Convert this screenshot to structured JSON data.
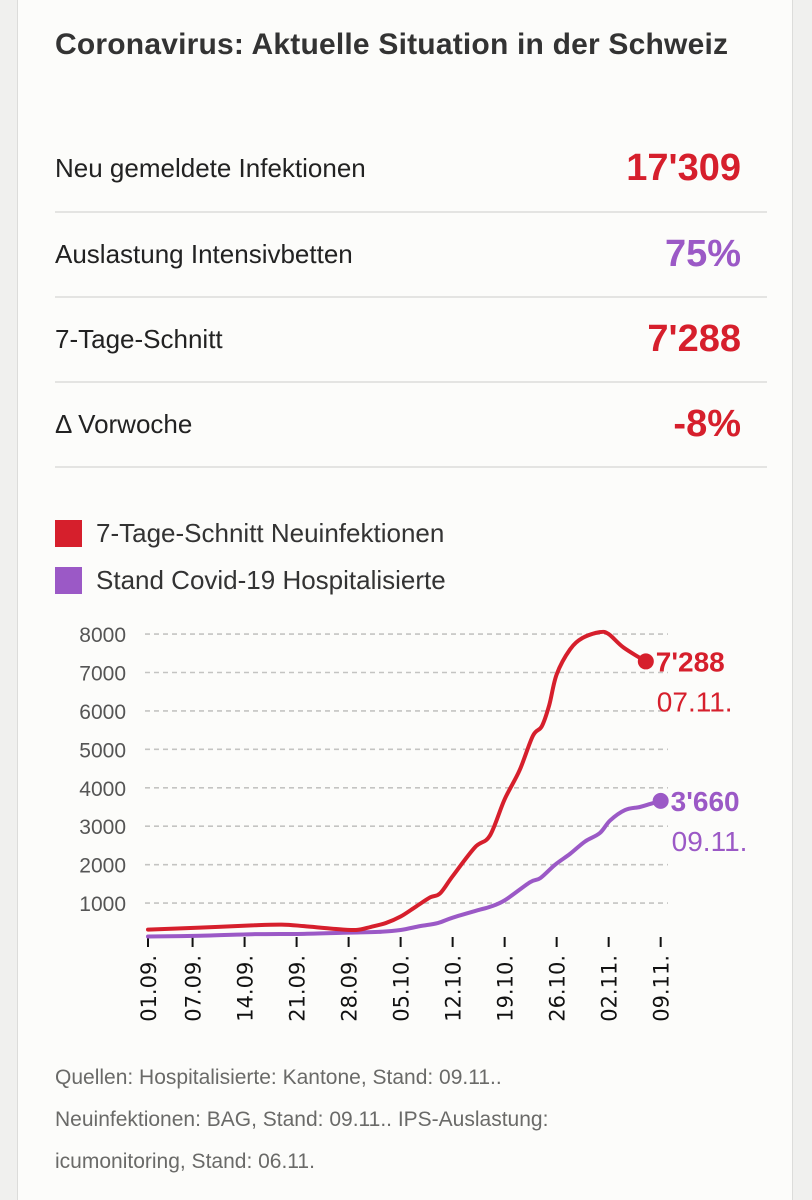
{
  "title": "Coronavirus: Aktuelle Situation in der Schweiz",
  "colors": {
    "red": "#d61f2c",
    "purple": "#9b59c6"
  },
  "stats": [
    {
      "label": "Neu gemeldete Infektionen",
      "value": "17'309",
      "color": "#d61f2c"
    },
    {
      "label": "Auslastung Intensivbetten",
      "value": "75%",
      "color": "#9b59c6"
    },
    {
      "label": "7-Tage-Schnitt",
      "value": "7'288",
      "color": "#d61f2c"
    },
    {
      "label": "Δ Vorwoche",
      "value": "-8%",
      "color": "#d61f2c"
    }
  ],
  "legend": [
    {
      "label": "7-Tage-Schnitt Neuinfektionen",
      "color": "#d61f2c"
    },
    {
      "label": "Stand Covid-19 Hospitalisierte",
      "color": "#9b59c6"
    }
  ],
  "chart_data": {
    "type": "line",
    "title": "",
    "xlabel": "",
    "ylabel": "",
    "x_unit": "days since 01.09.",
    "xlim": [
      0,
      69
    ],
    "ylim": [
      0,
      8000
    ],
    "yticks": [
      1000,
      2000,
      3000,
      4000,
      5000,
      6000,
      7000,
      8000
    ],
    "xticks": [
      {
        "day": 0,
        "label": "01.09."
      },
      {
        "day": 6,
        "label": "07.09."
      },
      {
        "day": 13,
        "label": "14.09."
      },
      {
        "day": 20,
        "label": "21.09."
      },
      {
        "day": 27,
        "label": "28.09."
      },
      {
        "day": 34,
        "label": "05.10."
      },
      {
        "day": 41,
        "label": "12.10."
      },
      {
        "day": 48,
        "label": "19.10."
      },
      {
        "day": 55,
        "label": "26.10."
      },
      {
        "day": 62,
        "label": "02.11."
      },
      {
        "day": 69,
        "label": "09.11."
      }
    ],
    "grid": true,
    "legend_position": "top-left",
    "series": [
      {
        "name": "7-Tage-Schnitt Neuinfektionen",
        "color": "#d61f2c",
        "x": [
          0,
          7,
          14,
          18,
          21,
          25,
          28,
          30,
          32,
          34,
          36,
          38,
          39.3,
          41,
          44,
          46,
          48,
          50,
          51.8,
          53,
          54,
          55,
          56.8,
          58.5,
          60.8,
          62,
          64,
          67
        ],
        "y": [
          310,
          360,
          420,
          440,
          400,
          330,
          300,
          380,
          480,
          650,
          900,
          1150,
          1250,
          1700,
          2450,
          2750,
          3700,
          4450,
          5350,
          5600,
          6150,
          6950,
          7600,
          7900,
          8050,
          8000,
          7650,
          7288
        ],
        "end_label": "7'288",
        "end_date": "07.11."
      },
      {
        "name": "Stand Covid-19 Hospitalisierte",
        "color": "#9b59c6",
        "x": [
          0,
          7,
          14,
          21,
          27,
          31,
          34,
          36.6,
          39,
          41,
          44.7,
          46,
          48,
          51.4,
          52.8,
          54.8,
          56.8,
          58.8,
          60.8,
          62.2,
          64.2,
          66.2,
          67.6,
          69
        ],
        "y": [
          130,
          150,
          190,
          200,
          230,
          250,
          300,
          400,
          480,
          620,
          830,
          900,
          1070,
          1540,
          1650,
          2000,
          2280,
          2600,
          2820,
          3150,
          3420,
          3500,
          3580,
          3660
        ],
        "end_label": "3'660",
        "end_date": "09.11."
      }
    ]
  },
  "footer": {
    "lines": [
      "Quellen: Hospitalisierte: Kantone, Stand: 09.11..",
      "Neuinfektionen: BAG, Stand: 09.11.. IPS-Auslastung:",
      "icumonitoring, Stand: 06.11."
    ]
  }
}
